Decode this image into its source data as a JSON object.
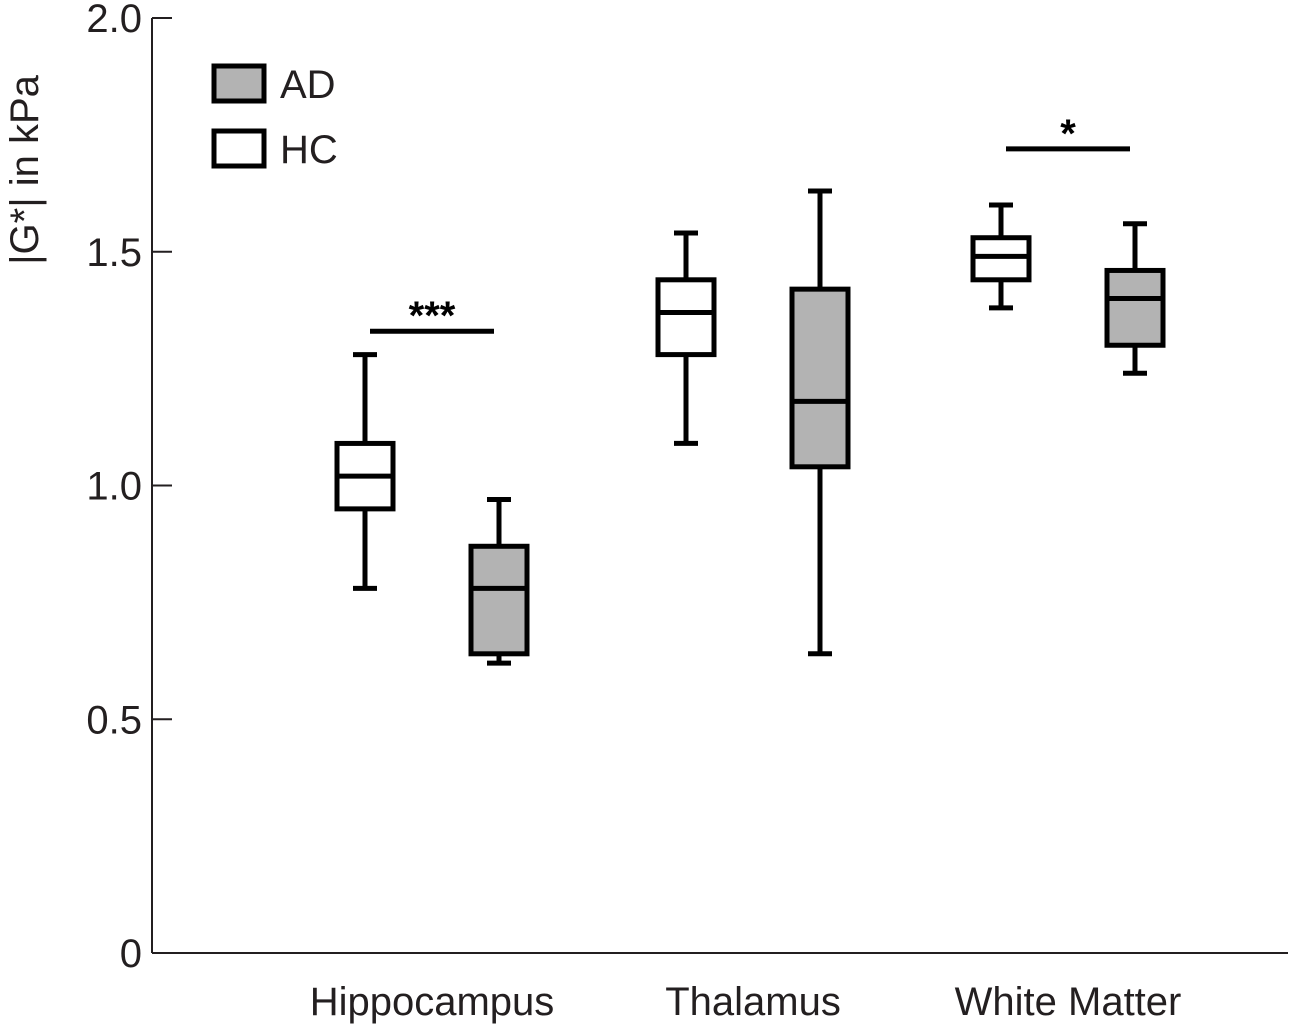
{
  "chart_data": {
    "type": "box",
    "ylabel": "|G*| in kPa",
    "ylim": [
      0,
      2.0
    ],
    "yticks": [
      0,
      0.5,
      1.0,
      1.5,
      2.0
    ],
    "ytick_labels": [
      "0",
      "0.5",
      "1.0",
      "1.5",
      "2.0"
    ],
    "categories": [
      "Hippocampus",
      "Thalamus",
      "White Matter"
    ],
    "legend": {
      "placement": "top-left",
      "entries": [
        {
          "label": "AD",
          "color": "#b3b3b3"
        },
        {
          "label": "HC",
          "color": "#ffffff"
        }
      ]
    },
    "series": [
      {
        "name": "HC",
        "color": "#ffffff",
        "boxes": [
          {
            "category": "Hippocampus",
            "min": 0.78,
            "q1": 0.95,
            "median": 1.02,
            "q3": 1.09,
            "max": 1.28
          },
          {
            "category": "Thalamus",
            "min": 1.09,
            "q1": 1.28,
            "median": 1.37,
            "q3": 1.44,
            "max": 1.54
          },
          {
            "category": "White Matter",
            "min": 1.38,
            "q1": 1.44,
            "median": 1.49,
            "q3": 1.53,
            "max": 1.6
          }
        ]
      },
      {
        "name": "AD",
        "color": "#b3b3b3",
        "boxes": [
          {
            "category": "Hippocampus",
            "min": 0.62,
            "q1": 0.64,
            "median": 0.78,
            "q3": 0.87,
            "max": 0.97
          },
          {
            "category": "Thalamus",
            "min": 0.64,
            "q1": 1.04,
            "median": 1.18,
            "q3": 1.42,
            "max": 1.63
          },
          {
            "category": "White Matter",
            "min": 1.24,
            "q1": 1.3,
            "median": 1.4,
            "q3": 1.46,
            "max": 1.56
          }
        ]
      }
    ],
    "significance": [
      {
        "category": "Hippocampus",
        "label": "***",
        "y": 1.33
      },
      {
        "category": "White Matter",
        "label": "*",
        "y": 1.72
      }
    ]
  }
}
